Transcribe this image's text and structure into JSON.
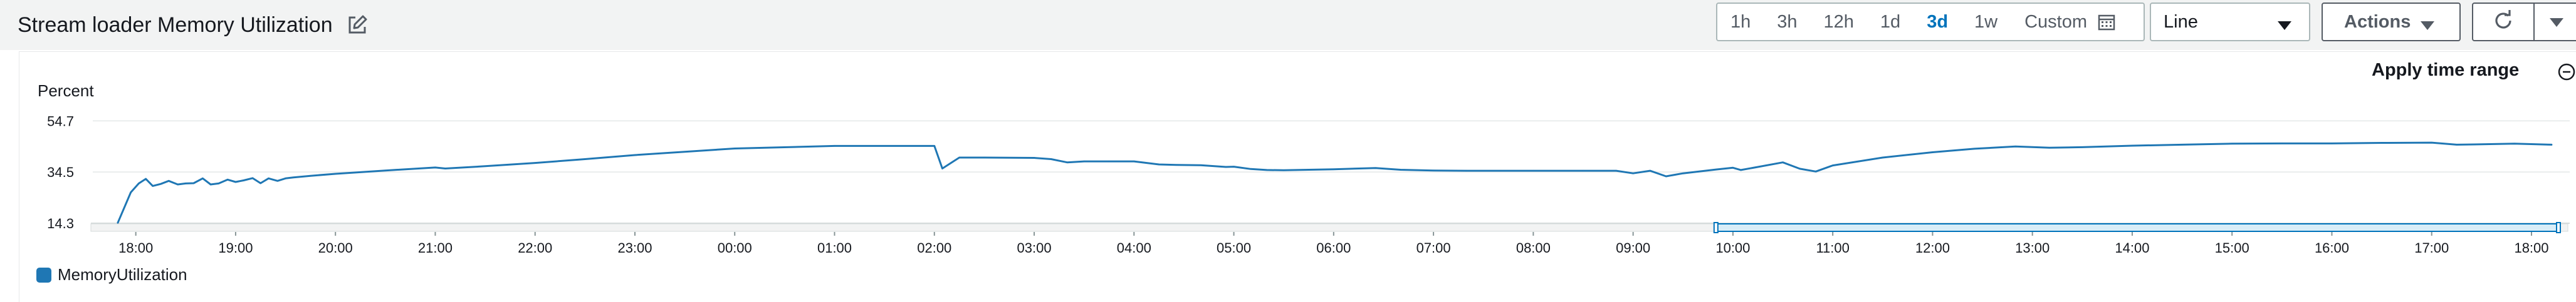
{
  "header": {
    "title": "Stream loader Memory Utilization",
    "edit_icon": "edit-icon",
    "time_ranges": [
      {
        "label": "1h",
        "active": false
      },
      {
        "label": "3h",
        "active": false
      },
      {
        "label": "12h",
        "active": false
      },
      {
        "label": "1d",
        "active": false
      },
      {
        "label": "3d",
        "active": true
      },
      {
        "label": "1w",
        "active": false
      }
    ],
    "custom_label": "Custom",
    "calendar_icon": "calendar-icon",
    "view_select": "Line",
    "actions_label": "Actions",
    "refresh_icon": "refresh-icon"
  },
  "panel": {
    "apply_time_range": "Apply time range",
    "zoom_icon": "zoom-out-icon"
  },
  "chart_data": {
    "type": "line",
    "ylabel": "Percent",
    "yticks": [
      14.3,
      34.5,
      54.7
    ],
    "ylim": [
      14.3,
      56.5
    ],
    "xlim": [
      17.55,
      42.27
    ],
    "xticks": [
      {
        "v": 18,
        "label": "18:00"
      },
      {
        "v": 19,
        "label": "19:00"
      },
      {
        "v": 20,
        "label": "20:00"
      },
      {
        "v": 21,
        "label": "21:00"
      },
      {
        "v": 22,
        "label": "22:00"
      },
      {
        "v": 23,
        "label": "23:00"
      },
      {
        "v": 24,
        "label": "00:00"
      },
      {
        "v": 25,
        "label": "01:00"
      },
      {
        "v": 26,
        "label": "02:00"
      },
      {
        "v": 27,
        "label": "03:00"
      },
      {
        "v": 28,
        "label": "04:00"
      },
      {
        "v": 29,
        "label": "05:00"
      },
      {
        "v": 30,
        "label": "06:00"
      },
      {
        "v": 31,
        "label": "07:00"
      },
      {
        "v": 32,
        "label": "08:00"
      },
      {
        "v": 33,
        "label": "09:00"
      },
      {
        "v": 34,
        "label": "10:00"
      },
      {
        "v": 35,
        "label": "11:00"
      },
      {
        "v": 36,
        "label": "12:00"
      },
      {
        "v": 37,
        "label": "13:00"
      },
      {
        "v": 38,
        "label": "14:00"
      },
      {
        "v": 39,
        "label": "15:00"
      },
      {
        "v": 40,
        "label": "16:00"
      },
      {
        "v": 41,
        "label": "17:00"
      },
      {
        "v": 42,
        "label": "18:00"
      }
    ],
    "grid": true,
    "legend_position": "bottom-left",
    "series": [
      {
        "name": "MemoryUtilization",
        "color": "#1f77b4",
        "x": [
          17.82,
          17.95,
          18.03,
          18.1,
          18.17,
          18.25,
          18.33,
          18.42,
          18.5,
          18.58,
          18.67,
          18.75,
          18.83,
          18.92,
          19.0,
          19.08,
          19.17,
          19.25,
          19.33,
          19.42,
          19.5,
          19.58,
          19.75,
          20.0,
          20.5,
          21.0,
          21.1,
          21.5,
          22.0,
          22.5,
          23.0,
          23.5,
          24.0,
          25.0,
          26.0,
          26.08,
          26.25,
          26.5,
          27.0,
          27.17,
          27.33,
          27.5,
          27.75,
          28.0,
          28.25,
          28.42,
          28.67,
          28.92,
          29.0,
          29.17,
          29.33,
          29.5,
          30.0,
          30.42,
          30.67,
          31.0,
          31.33,
          31.67,
          32.0,
          32.5,
          32.83,
          33.0,
          33.17,
          33.33,
          33.5,
          33.83,
          34.0,
          34.08,
          34.25,
          34.5,
          34.67,
          34.83,
          35.0,
          35.5,
          36.0,
          36.42,
          36.83,
          37.17,
          37.5,
          38.0,
          38.5,
          39.0,
          39.5,
          40.0,
          40.5,
          41.0,
          41.25,
          41.42,
          41.83,
          42.2
        ],
        "y": [
          14.5,
          26.5,
          30.0,
          31.8,
          29.0,
          29.8,
          31.0,
          29.6,
          30.0,
          30.1,
          32.0,
          29.6,
          30.0,
          31.5,
          30.6,
          31.2,
          32.1,
          30.1,
          32.0,
          31.0,
          32.0,
          32.4,
          33.0,
          33.8,
          35.1,
          36.3,
          35.9,
          36.8,
          38.1,
          39.6,
          41.2,
          42.5,
          43.8,
          44.8,
          44.8,
          35.9,
          40.2,
          40.2,
          40.1,
          39.6,
          38.3,
          38.7,
          38.7,
          38.7,
          37.5,
          37.3,
          37.2,
          36.5,
          36.6,
          35.7,
          35.3,
          35.2,
          35.6,
          36.1,
          35.4,
          35.1,
          35.0,
          35.0,
          35.0,
          35.0,
          35.0,
          34.0,
          35.0,
          32.8,
          34.0,
          35.5,
          36.2,
          35.3,
          36.5,
          38.3,
          35.8,
          34.7,
          37.1,
          40.2,
          42.3,
          43.7,
          44.6,
          44.1,
          44.3,
          44.9,
          45.3,
          45.7,
          45.8,
          45.8,
          46.0,
          46.1,
          45.3,
          45.4,
          45.7,
          45.3
        ]
      }
    ],
    "brush_range": [
      33.83,
      42.27
    ]
  }
}
